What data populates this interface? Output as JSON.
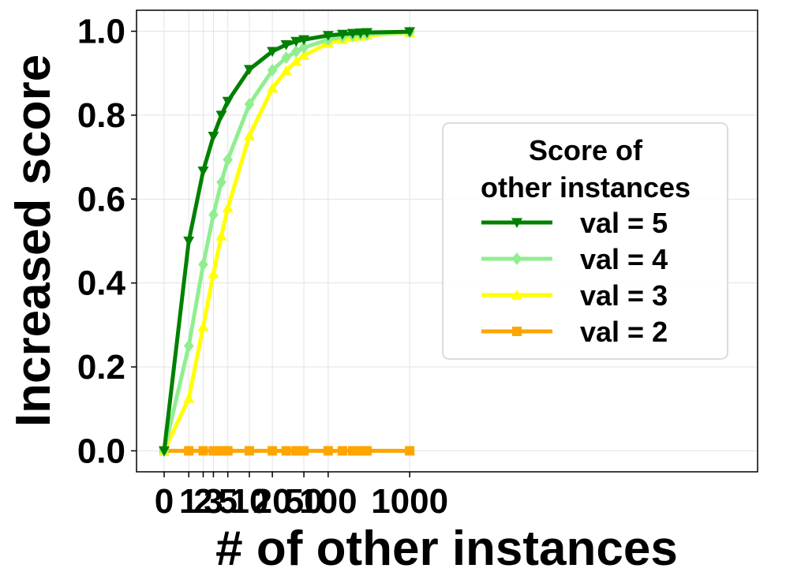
{
  "chart_data": {
    "type": "line",
    "title": "",
    "xlabel": "# of other instances",
    "ylabel": "Increased score",
    "x_ticks": [
      "0",
      "1",
      "2",
      "3",
      "5",
      "10",
      "20",
      "50",
      "100",
      "1000"
    ],
    "y_ticks": [
      "0.0",
      "0.2",
      "0.4",
      "0.6",
      "0.8",
      "1.0"
    ],
    "ylim": [
      -0.05,
      1.05
    ],
    "grid": true,
    "legend": {
      "title_line1": "Score of",
      "title_line2": "other instances",
      "placement": "center-right"
    },
    "x": [
      0,
      1,
      2,
      3,
      4,
      5,
      10,
      20,
      30,
      40,
      50,
      100,
      150,
      200,
      250,
      300,
      1000
    ],
    "series": [
      {
        "name": "val = 5",
        "color": "#008000",
        "marker": "triangle-down",
        "values": [
          0.0,
          0.5,
          0.667,
          0.75,
          0.8,
          0.833,
          0.909,
          0.952,
          0.968,
          0.976,
          0.98,
          0.99,
          0.993,
          0.995,
          0.996,
          0.997,
          0.999
        ]
      },
      {
        "name": "val = 4",
        "color": "#90EE90",
        "marker": "diamond",
        "values": [
          0.0,
          0.25,
          0.444,
          0.5625,
          0.64,
          0.694,
          0.826,
          0.907,
          0.937,
          0.952,
          0.961,
          0.98,
          0.987,
          0.99,
          0.992,
          0.993,
          0.998
        ]
      },
      {
        "name": "val = 3",
        "color": "#FFFF00",
        "marker": "triangle-up",
        "values": [
          0.0,
          0.125,
          0.296,
          0.422,
          0.512,
          0.579,
          0.751,
          0.864,
          0.906,
          0.928,
          0.942,
          0.971,
          0.98,
          0.985,
          0.988,
          0.99,
          0.997
        ]
      },
      {
        "name": "val = 2",
        "color": "#FFA500",
        "marker": "square",
        "values": [
          0,
          0,
          0,
          0,
          0,
          0,
          0,
          0,
          0,
          0,
          0,
          0,
          0,
          0,
          0,
          0,
          0
        ]
      }
    ]
  }
}
